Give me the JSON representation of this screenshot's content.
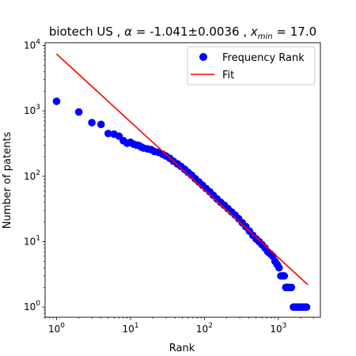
{
  "chart_data": {
    "type": "scatter",
    "title": {
      "prefix": "biotech US , ",
      "alpha_symbol": "α",
      "alpha_value": " = -1.041±0.0036 , ",
      "xmin_symbol": "x",
      "xmin_sub": "min",
      "xmin_value": " = 17.0"
    },
    "xlabel": "Rank",
    "ylabel": "Number of patents",
    "xscale": "log",
    "yscale": "log",
    "xlim": [
      0.7,
      3700
    ],
    "ylim": [
      0.7,
      11000
    ],
    "x_ticks": [
      {
        "value": 1,
        "base": "10",
        "exp": "0"
      },
      {
        "value": 10,
        "base": "10",
        "exp": "1"
      },
      {
        "value": 100,
        "base": "10",
        "exp": "2"
      },
      {
        "value": 1000,
        "base": "10",
        "exp": "3"
      }
    ],
    "y_ticks": [
      {
        "value": 1,
        "base": "10",
        "exp": "0"
      },
      {
        "value": 10,
        "base": "10",
        "exp": "1"
      },
      {
        "value": 100,
        "base": "10",
        "exp": "2"
      },
      {
        "value": 1000,
        "base": "10",
        "exp": "3"
      },
      {
        "value": 10000,
        "base": "10",
        "exp": "4"
      }
    ],
    "legend_position": "top-right",
    "series": [
      {
        "name": "Frequency Rank",
        "kind": "scatter",
        "color": "#0000ff",
        "x": [
          1,
          2,
          3,
          4,
          5,
          6,
          7,
          8,
          9,
          10,
          11,
          12,
          13,
          14,
          15,
          17,
          19,
          21,
          24,
          27,
          30,
          34,
          38,
          43,
          48,
          54,
          60,
          67,
          75,
          84,
          94,
          105,
          118,
          132,
          148,
          166,
          186,
          208,
          233,
          260,
          290,
          325,
          363,
          405,
          452,
          500,
          550,
          600,
          660,
          720,
          780,
          840,
          900,
          960,
          1020,
          1080,
          1150,
          1200,
          1260,
          1320,
          1400,
          1500,
          1600,
          1700,
          1800,
          1900,
          2000,
          2100,
          2200,
          2300,
          2400
        ],
        "y": [
          1400,
          960,
          660,
          620,
          450,
          440,
          410,
          350,
          320,
          330,
          310,
          300,
          295,
          280,
          270,
          262,
          255,
          240,
          232,
          218,
          205,
          188,
          170,
          155,
          142,
          128,
          115,
          104,
          92,
          82,
          73,
          65,
          58,
          51,
          45,
          40,
          36,
          32,
          28.5,
          25.5,
          22.5,
          19.5,
          17,
          14.5,
          12.5,
          11,
          10,
          9,
          8,
          7,
          6.5,
          6,
          5,
          4.5,
          4,
          3,
          3,
          3,
          2,
          2,
          2,
          2,
          1,
          1,
          1,
          1,
          1,
          1,
          1,
          1,
          1
        ]
      },
      {
        "name": "Fit",
        "kind": "line",
        "color": "#ff0000",
        "x": [
          1,
          2500
        ],
        "y": [
          7400,
          2.2
        ]
      }
    ]
  }
}
